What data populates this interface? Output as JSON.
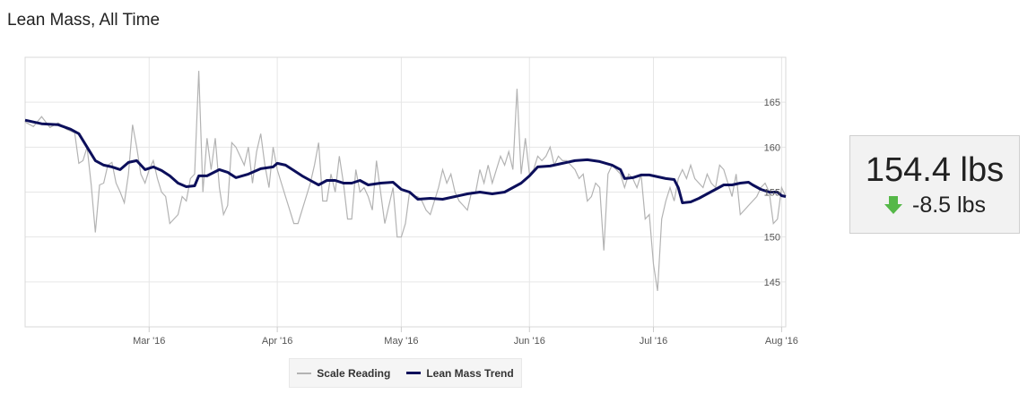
{
  "page": {
    "title": "Lean Mass, All Time"
  },
  "stat": {
    "value": "154.4 lbs",
    "change": "-8.5 lbs",
    "change_icon": "down-arrow-icon",
    "change_color": "#55b848"
  },
  "legend": {
    "scale_label": "Scale Reading",
    "trend_label": "Lean Mass Trend"
  },
  "colors": {
    "scale": "#b3b3b3",
    "trend": "#0c0f5b",
    "grid": "#e6e6e6"
  },
  "chart_data": {
    "type": "line",
    "title": "",
    "xlabel": "",
    "ylabel": "",
    "x_range": [
      "2016-01-31",
      "2016-08-02"
    ],
    "ylim": [
      140,
      170
    ],
    "y_ticks": [
      145,
      150,
      155,
      160,
      165
    ],
    "x_ticks": [
      {
        "date": "2016-03-01",
        "label": "Mar '16"
      },
      {
        "date": "2016-04-01",
        "label": "Apr '16"
      },
      {
        "date": "2016-05-01",
        "label": "May '16"
      },
      {
        "date": "2016-06-01",
        "label": "Jun '16"
      },
      {
        "date": "2016-07-01",
        "label": "Jul '16"
      },
      {
        "date": "2016-08-01",
        "label": "Aug '16"
      }
    ],
    "grid": true,
    "legend_position": "bottom",
    "series": [
      {
        "name": "Scale Reading",
        "points": [
          [
            "2016-01-31",
            162.8
          ],
          [
            "2016-02-02",
            162.3
          ],
          [
            "2016-02-04",
            163.4
          ],
          [
            "2016-02-06",
            162.2
          ],
          [
            "2016-02-08",
            162.7
          ],
          [
            "2016-02-10",
            162.0
          ],
          [
            "2016-02-12",
            161.6
          ],
          [
            "2016-02-13",
            158.2
          ],
          [
            "2016-02-14",
            158.5
          ],
          [
            "2016-02-15",
            160.0
          ],
          [
            "2016-02-16",
            155.8
          ],
          [
            "2016-02-17",
            150.5
          ],
          [
            "2016-02-18",
            155.8
          ],
          [
            "2016-02-19",
            156.0
          ],
          [
            "2016-02-20",
            158.0
          ],
          [
            "2016-02-21",
            158.3
          ],
          [
            "2016-02-22",
            156.0
          ],
          [
            "2016-02-23",
            155.0
          ],
          [
            "2016-02-24",
            153.8
          ],
          [
            "2016-02-25",
            157.0
          ],
          [
            "2016-02-26",
            162.5
          ],
          [
            "2016-02-27",
            160.0
          ],
          [
            "2016-02-28",
            157.0
          ],
          [
            "2016-02-29",
            156.0
          ],
          [
            "2016-03-01",
            157.5
          ],
          [
            "2016-03-02",
            158.5
          ],
          [
            "2016-03-03",
            156.5
          ],
          [
            "2016-03-04",
            155.0
          ],
          [
            "2016-03-05",
            154.5
          ],
          [
            "2016-03-06",
            151.5
          ],
          [
            "2016-03-07",
            152.0
          ],
          [
            "2016-03-08",
            152.5
          ],
          [
            "2016-03-09",
            154.5
          ],
          [
            "2016-03-10",
            154.0
          ],
          [
            "2016-03-11",
            156.5
          ],
          [
            "2016-03-12",
            157.0
          ],
          [
            "2016-03-13",
            168.5
          ],
          [
            "2016-03-14",
            155.0
          ],
          [
            "2016-03-15",
            161.0
          ],
          [
            "2016-03-16",
            157.5
          ],
          [
            "2016-03-17",
            161.0
          ],
          [
            "2016-03-18",
            155.5
          ],
          [
            "2016-03-19",
            152.5
          ],
          [
            "2016-03-20",
            153.5
          ],
          [
            "2016-03-21",
            160.5
          ],
          [
            "2016-03-22",
            160.0
          ],
          [
            "2016-03-23",
            159.0
          ],
          [
            "2016-03-24",
            158.0
          ],
          [
            "2016-03-25",
            160.0
          ],
          [
            "2016-03-26",
            156.0
          ],
          [
            "2016-03-27",
            159.5
          ],
          [
            "2016-03-28",
            161.5
          ],
          [
            "2016-03-29",
            158.0
          ],
          [
            "2016-03-30",
            155.5
          ],
          [
            "2016-03-31",
            160.0
          ],
          [
            "2016-04-01",
            157.5
          ],
          [
            "2016-04-02",
            156.0
          ],
          [
            "2016-04-03",
            154.5
          ],
          [
            "2016-04-04",
            153.0
          ],
          [
            "2016-04-05",
            151.5
          ],
          [
            "2016-04-06",
            151.5
          ],
          [
            "2016-04-07",
            153.0
          ],
          [
            "2016-04-08",
            154.5
          ],
          [
            "2016-04-09",
            156.0
          ],
          [
            "2016-04-10",
            158.0
          ],
          [
            "2016-04-11",
            160.5
          ],
          [
            "2016-04-12",
            154.0
          ],
          [
            "2016-04-13",
            154.0
          ],
          [
            "2016-04-14",
            157.0
          ],
          [
            "2016-04-15",
            155.0
          ],
          [
            "2016-04-16",
            159.0
          ],
          [
            "2016-04-17",
            156.0
          ],
          [
            "2016-04-18",
            152.0
          ],
          [
            "2016-04-19",
            152.0
          ],
          [
            "2016-04-20",
            157.5
          ],
          [
            "2016-04-21",
            155.0
          ],
          [
            "2016-04-22",
            155.5
          ],
          [
            "2016-04-23",
            154.5
          ],
          [
            "2016-04-24",
            153.0
          ],
          [
            "2016-04-25",
            158.5
          ],
          [
            "2016-04-26",
            155.0
          ],
          [
            "2016-04-27",
            151.5
          ],
          [
            "2016-04-28",
            153.5
          ],
          [
            "2016-04-29",
            155.5
          ],
          [
            "2016-04-30",
            150.0
          ],
          [
            "2016-05-01",
            150.0
          ],
          [
            "2016-05-02",
            151.5
          ],
          [
            "2016-05-03",
            155.0
          ],
          [
            "2016-05-04",
            154.5
          ],
          [
            "2016-05-05",
            154.5
          ],
          [
            "2016-05-06",
            154.0
          ],
          [
            "2016-05-07",
            153.0
          ],
          [
            "2016-05-08",
            152.5
          ],
          [
            "2016-05-09",
            154.0
          ],
          [
            "2016-05-10",
            155.5
          ],
          [
            "2016-05-11",
            157.5
          ],
          [
            "2016-05-12",
            156.0
          ],
          [
            "2016-05-13",
            157.0
          ],
          [
            "2016-05-14",
            155.0
          ],
          [
            "2016-05-15",
            154.0
          ],
          [
            "2016-05-16",
            153.5
          ],
          [
            "2016-05-17",
            153.0
          ],
          [
            "2016-05-18",
            155.0
          ],
          [
            "2016-05-19",
            155.0
          ],
          [
            "2016-05-20",
            157.5
          ],
          [
            "2016-05-21",
            156.0
          ],
          [
            "2016-05-22",
            158.0
          ],
          [
            "2016-05-23",
            156.0
          ],
          [
            "2016-05-24",
            157.5
          ],
          [
            "2016-05-25",
            159.0
          ],
          [
            "2016-05-26",
            158.0
          ],
          [
            "2016-05-27",
            159.5
          ],
          [
            "2016-05-28",
            157.5
          ],
          [
            "2016-05-29",
            166.5
          ],
          [
            "2016-05-30",
            157.0
          ],
          [
            "2016-05-31",
            161.0
          ],
          [
            "2016-06-01",
            157.0
          ],
          [
            "2016-06-02",
            157.5
          ],
          [
            "2016-06-03",
            159.0
          ],
          [
            "2016-06-04",
            158.5
          ],
          [
            "2016-06-05",
            159.0
          ],
          [
            "2016-06-06",
            160.0
          ],
          [
            "2016-06-07",
            158.0
          ],
          [
            "2016-06-08",
            159.0
          ],
          [
            "2016-06-09",
            158.5
          ],
          [
            "2016-06-10",
            158.5
          ],
          [
            "2016-06-11",
            158.0
          ],
          [
            "2016-06-12",
            157.5
          ],
          [
            "2016-06-13",
            156.5
          ],
          [
            "2016-06-14",
            157.0
          ],
          [
            "2016-06-15",
            154.0
          ],
          [
            "2016-06-16",
            154.5
          ],
          [
            "2016-06-17",
            156.0
          ],
          [
            "2016-06-18",
            155.5
          ],
          [
            "2016-06-19",
            148.5
          ],
          [
            "2016-06-20",
            157.0
          ],
          [
            "2016-06-21",
            158.0
          ],
          [
            "2016-06-22",
            157.5
          ],
          [
            "2016-06-23",
            157.0
          ],
          [
            "2016-06-24",
            155.5
          ],
          [
            "2016-06-25",
            157.0
          ],
          [
            "2016-06-26",
            156.5
          ],
          [
            "2016-06-27",
            155.5
          ],
          [
            "2016-06-28",
            157.0
          ],
          [
            "2016-06-29",
            152.0
          ],
          [
            "2016-06-30",
            152.5
          ],
          [
            "2016-07-01",
            147.0
          ],
          [
            "2016-07-02",
            144.0
          ],
          [
            "2016-07-03",
            152.0
          ],
          [
            "2016-07-04",
            154.0
          ],
          [
            "2016-07-05",
            155.5
          ],
          [
            "2016-07-06",
            154.0
          ],
          [
            "2016-07-07",
            156.5
          ],
          [
            "2016-07-08",
            157.5
          ],
          [
            "2016-07-09",
            156.5
          ],
          [
            "2016-07-10",
            158.0
          ],
          [
            "2016-07-11",
            156.5
          ],
          [
            "2016-07-12",
            156.0
          ],
          [
            "2016-07-13",
            155.5
          ],
          [
            "2016-07-14",
            157.0
          ],
          [
            "2016-07-15",
            156.0
          ],
          [
            "2016-07-16",
            155.5
          ],
          [
            "2016-07-17",
            158.0
          ],
          [
            "2016-07-18",
            157.5
          ],
          [
            "2016-07-19",
            156.0
          ],
          [
            "2016-07-20",
            154.5
          ],
          [
            "2016-07-21",
            157.0
          ],
          [
            "2016-07-22",
            152.5
          ],
          [
            "2016-07-23",
            153.0
          ],
          [
            "2016-07-24",
            153.5
          ],
          [
            "2016-07-25",
            154.0
          ],
          [
            "2016-07-26",
            154.5
          ],
          [
            "2016-07-27",
            155.5
          ],
          [
            "2016-07-28",
            156.0
          ],
          [
            "2016-07-29",
            155.0
          ],
          [
            "2016-07-30",
            151.5
          ],
          [
            "2016-07-31",
            152.0
          ],
          [
            "2016-08-01",
            155.5
          ],
          [
            "2016-08-02",
            154.5
          ]
        ]
      },
      {
        "name": "Lean Mass Trend",
        "points": [
          [
            "2016-01-31",
            163.0
          ],
          [
            "2016-02-04",
            162.6
          ],
          [
            "2016-02-08",
            162.5
          ],
          [
            "2016-02-11",
            162.0
          ],
          [
            "2016-02-13",
            161.5
          ],
          [
            "2016-02-15",
            160.0
          ],
          [
            "2016-02-17",
            158.5
          ],
          [
            "2016-02-19",
            158.0
          ],
          [
            "2016-02-21",
            157.8
          ],
          [
            "2016-02-23",
            157.5
          ],
          [
            "2016-02-25",
            158.3
          ],
          [
            "2016-02-27",
            158.5
          ],
          [
            "2016-02-29",
            157.5
          ],
          [
            "2016-03-02",
            157.8
          ],
          [
            "2016-03-04",
            157.4
          ],
          [
            "2016-03-06",
            156.8
          ],
          [
            "2016-03-08",
            156.0
          ],
          [
            "2016-03-10",
            155.6
          ],
          [
            "2016-03-12",
            155.7
          ],
          [
            "2016-03-13",
            156.8
          ],
          [
            "2016-03-15",
            156.8
          ],
          [
            "2016-03-18",
            157.5
          ],
          [
            "2016-03-20",
            157.2
          ],
          [
            "2016-03-22",
            156.6
          ],
          [
            "2016-03-25",
            157.0
          ],
          [
            "2016-03-28",
            157.6
          ],
          [
            "2016-03-31",
            157.8
          ],
          [
            "2016-04-01",
            158.2
          ],
          [
            "2016-04-03",
            158.0
          ],
          [
            "2016-04-05",
            157.4
          ],
          [
            "2016-04-07",
            156.8
          ],
          [
            "2016-04-09",
            156.3
          ],
          [
            "2016-04-11",
            155.8
          ],
          [
            "2016-04-13",
            156.3
          ],
          [
            "2016-04-15",
            156.3
          ],
          [
            "2016-04-17",
            156.0
          ],
          [
            "2016-04-19",
            156.0
          ],
          [
            "2016-04-21",
            156.3
          ],
          [
            "2016-04-23",
            155.8
          ],
          [
            "2016-04-26",
            156.0
          ],
          [
            "2016-04-29",
            156.1
          ],
          [
            "2016-05-01",
            155.3
          ],
          [
            "2016-05-03",
            155.0
          ],
          [
            "2016-05-05",
            154.2
          ],
          [
            "2016-05-08",
            154.3
          ],
          [
            "2016-05-11",
            154.2
          ],
          [
            "2016-05-14",
            154.5
          ],
          [
            "2016-05-17",
            154.8
          ],
          [
            "2016-05-20",
            155.0
          ],
          [
            "2016-05-23",
            154.8
          ],
          [
            "2016-05-26",
            155.0
          ],
          [
            "2016-05-28",
            155.5
          ],
          [
            "2016-05-30",
            156.0
          ],
          [
            "2016-06-01",
            156.8
          ],
          [
            "2016-06-03",
            157.8
          ],
          [
            "2016-06-06",
            157.9
          ],
          [
            "2016-06-09",
            158.2
          ],
          [
            "2016-06-12",
            158.5
          ],
          [
            "2016-06-15",
            158.6
          ],
          [
            "2016-06-18",
            158.4
          ],
          [
            "2016-06-21",
            158.0
          ],
          [
            "2016-06-23",
            157.5
          ],
          [
            "2016-06-24",
            156.5
          ],
          [
            "2016-06-26",
            156.6
          ],
          [
            "2016-06-28",
            156.9
          ],
          [
            "2016-06-30",
            156.9
          ],
          [
            "2016-07-02",
            156.7
          ],
          [
            "2016-07-04",
            156.5
          ],
          [
            "2016-07-06",
            156.4
          ],
          [
            "2016-07-07",
            155.5
          ],
          [
            "2016-07-08",
            153.8
          ],
          [
            "2016-07-10",
            153.9
          ],
          [
            "2016-07-12",
            154.3
          ],
          [
            "2016-07-14",
            154.8
          ],
          [
            "2016-07-16",
            155.3
          ],
          [
            "2016-07-18",
            155.8
          ],
          [
            "2016-07-20",
            155.8
          ],
          [
            "2016-07-22",
            156.0
          ],
          [
            "2016-07-24",
            156.1
          ],
          [
            "2016-07-25",
            155.8
          ],
          [
            "2016-07-27",
            155.3
          ],
          [
            "2016-07-29",
            155.0
          ],
          [
            "2016-07-31",
            155.0
          ],
          [
            "2016-08-01",
            154.6
          ],
          [
            "2016-08-02",
            154.5
          ]
        ]
      }
    ]
  }
}
